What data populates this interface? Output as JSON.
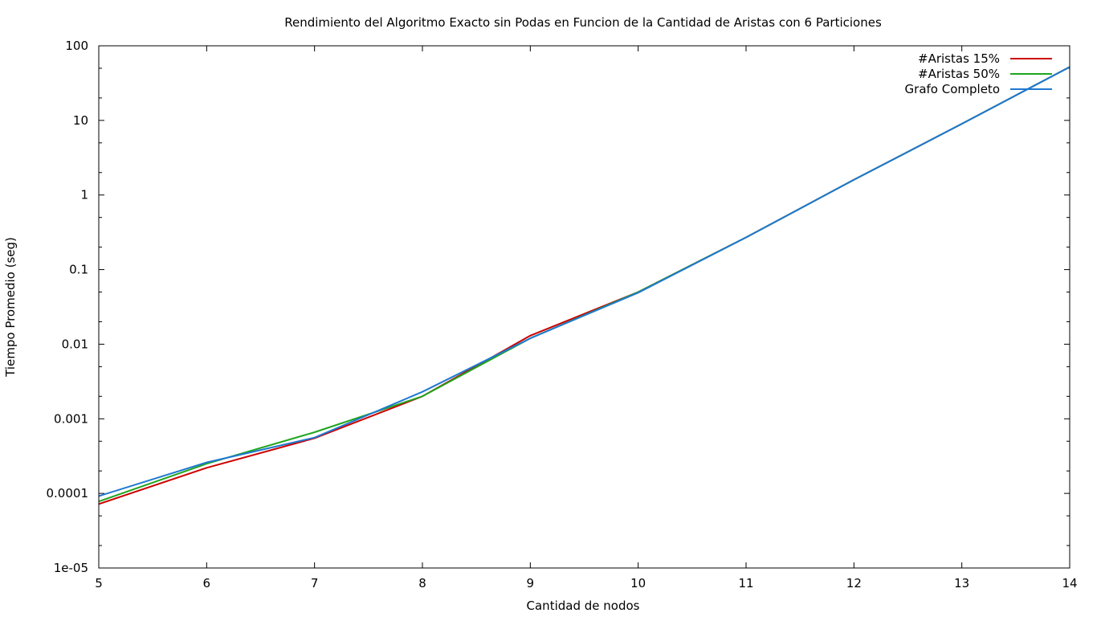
{
  "chart_data": {
    "type": "line",
    "title": "Rendimiento del Algoritmo Exacto sin Podas en Funcion de la Cantidad de Aristas con 6 Particiones",
    "xlabel": "Cantidad de nodos",
    "ylabel": "Tiempo Promedio (seg)",
    "xlim": [
      5,
      14
    ],
    "ylim": [
      1e-05,
      100
    ],
    "yscale": "log",
    "grid": false,
    "legend_position": "top-right",
    "x_ticks": [
      5,
      6,
      7,
      8,
      9,
      10,
      11,
      12,
      13,
      14
    ],
    "y_ticks": [
      1e-05,
      0.0001,
      0.001,
      0.01,
      0.1,
      1,
      10,
      100
    ],
    "y_tick_labels": [
      "1e-05",
      "0.0001",
      "0.001",
      "0.01",
      "0.1",
      "1",
      "10",
      "100"
    ],
    "x": [
      5,
      6,
      7,
      8,
      9,
      10,
      11,
      12,
      13,
      14
    ],
    "series": [
      {
        "name": "#Aristas 15%",
        "color": "#cc0000",
        "values": [
          7.2e-05,
          0.00022,
          0.00055,
          0.002,
          0.013,
          0.05,
          0.27,
          1.6,
          9.0,
          52
        ]
      },
      {
        "name": "#Aristas 50%",
        "color": "#1ea51e",
        "values": [
          7.8e-05,
          0.00025,
          0.00066,
          0.002,
          0.012,
          0.05,
          0.27,
          1.6,
          9.0,
          52
        ]
      },
      {
        "name": "Grafo Completo",
        "color": "#1f78d1",
        "values": [
          9.2e-05,
          0.00026,
          0.00056,
          0.0023,
          0.012,
          0.049,
          0.27,
          1.6,
          9.0,
          52
        ]
      }
    ]
  }
}
